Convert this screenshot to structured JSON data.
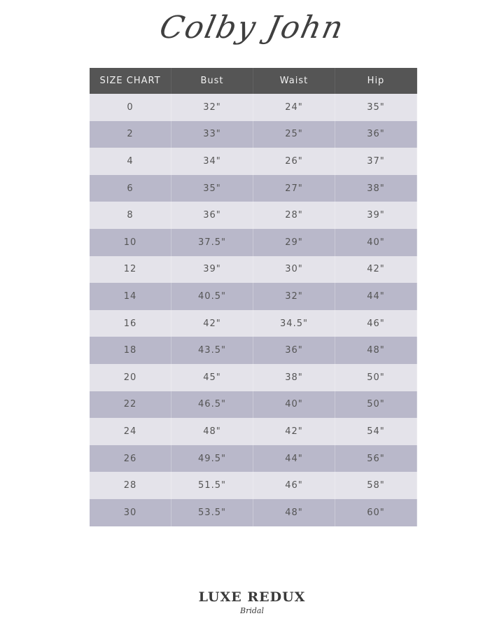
{
  "brand": "Colby John",
  "table": {
    "headers": [
      "SIZE CHART",
      "Bust",
      "Waist",
      "Hip"
    ],
    "rows": [
      [
        "0",
        "32\"",
        "24\"",
        "35\""
      ],
      [
        "2",
        "33\"",
        "25\"",
        "36\""
      ],
      [
        "4",
        "34\"",
        "26\"",
        "37\""
      ],
      [
        "6",
        "35\"",
        "27\"",
        "38\""
      ],
      [
        "8",
        "36\"",
        "28\"",
        "39\""
      ],
      [
        "10",
        "37.5\"",
        "29\"",
        "40\""
      ],
      [
        "12",
        "39\"",
        "30\"",
        "42\""
      ],
      [
        "14",
        "40.5\"",
        "32\"",
        "44\""
      ],
      [
        "16",
        "42\"",
        "34.5\"",
        "46\""
      ],
      [
        "18",
        "43.5\"",
        "36\"",
        "48\""
      ],
      [
        "20",
        "45\"",
        "38\"",
        "50\""
      ],
      [
        "22",
        "46.5\"",
        "40\"",
        "50\""
      ],
      [
        "24",
        "48\"",
        "42\"",
        "54\""
      ],
      [
        "26",
        "49.5\"",
        "44\"",
        "56\""
      ],
      [
        "28",
        "51.5\"",
        "46\"",
        "58\""
      ],
      [
        "30",
        "53.5\"",
        "48\"",
        "60\""
      ]
    ]
  },
  "footer": {
    "logo_main": "LUXE REDUX",
    "logo_sub": "Bridal"
  },
  "colors": {
    "header_bg": "#555555",
    "row_light": "#e4e3ea",
    "row_dark": "#b9b8ca",
    "text": "#555555"
  }
}
